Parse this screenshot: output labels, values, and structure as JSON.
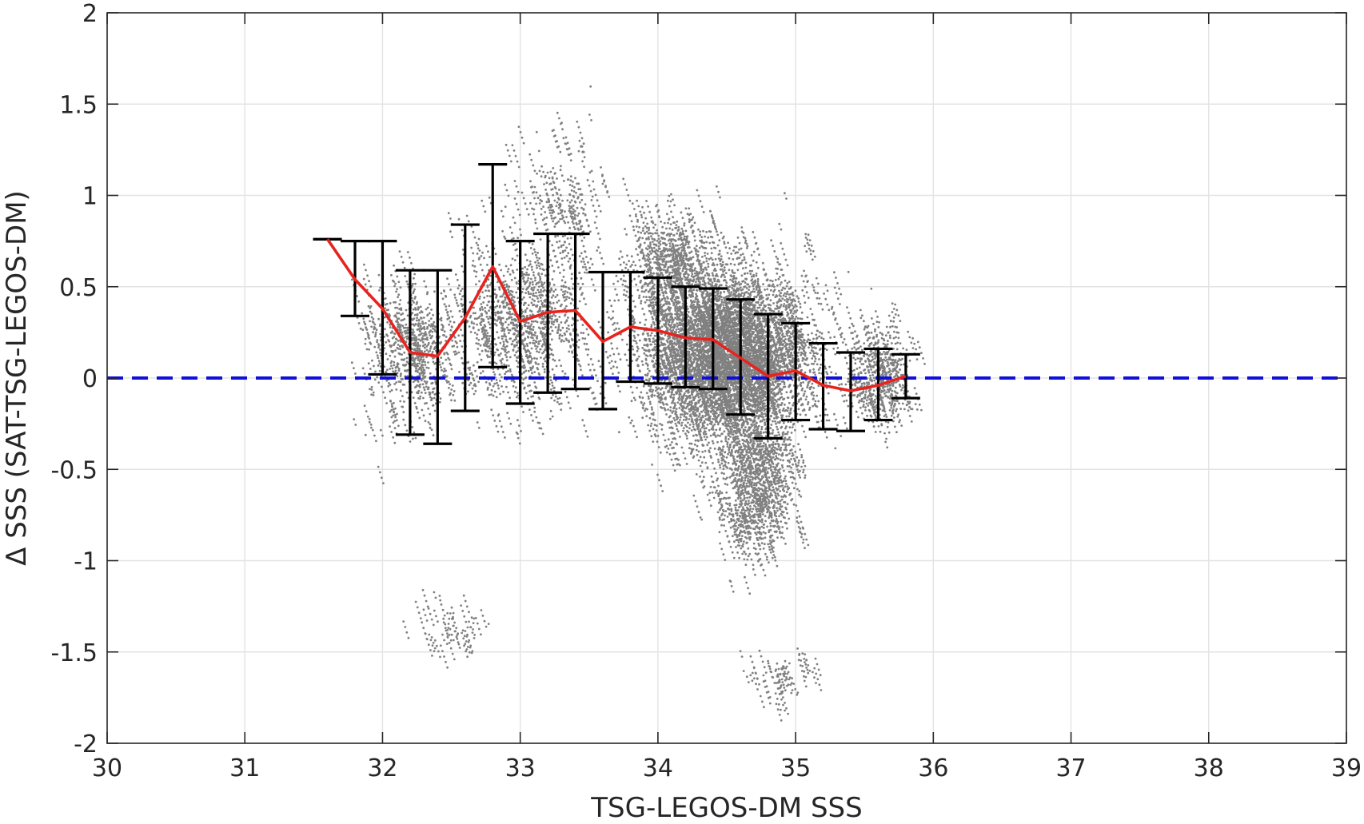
{
  "chart_data": {
    "type": "scatter",
    "xlabel": "TSG-LEGOS-DM SSS",
    "ylabel": "Δ SSS (SAT-TSG-LEGOS-DM)",
    "xlim": [
      30,
      39
    ],
    "ylim": [
      -2,
      2
    ],
    "x_ticks": [
      "30",
      "31",
      "32",
      "33",
      "34",
      "35",
      "36",
      "37",
      "38",
      "39"
    ],
    "y_ticks": [
      "2",
      "1.5",
      "1",
      "0.5",
      "0",
      "-0.5",
      "-1",
      "-1.5",
      "-2"
    ],
    "grid": true,
    "colors": {
      "scatter": "#808080",
      "mean_line": "#e8231e",
      "errorbars": "#000000",
      "zero_line": "#1010d8"
    },
    "reference_line": {
      "y": 0,
      "style": "dashed",
      "color": "#1010d8"
    },
    "mean_with_std": {
      "x": [
        31.6,
        31.8,
        32.0,
        32.2,
        32.4,
        32.6,
        32.8,
        33.0,
        33.2,
        33.4,
        33.6,
        33.8,
        34.0,
        34.2,
        34.4,
        34.6,
        34.8,
        35.0,
        35.2,
        35.4,
        35.6,
        35.8
      ],
      "mean": [
        0.76,
        0.54,
        0.38,
        0.14,
        0.12,
        0.33,
        0.61,
        0.31,
        0.36,
        0.37,
        0.2,
        0.28,
        0.26,
        0.22,
        0.21,
        0.11,
        0.01,
        0.04,
        -0.04,
        -0.07,
        -0.04,
        0.01
      ],
      "lower": [
        0.76,
        0.34,
        0.02,
        -0.31,
        -0.36,
        -0.18,
        0.06,
        -0.14,
        -0.08,
        -0.06,
        -0.17,
        -0.02,
        -0.03,
        -0.05,
        -0.06,
        -0.2,
        -0.33,
        -0.23,
        -0.28,
        -0.29,
        -0.23,
        -0.11
      ],
      "upper": [
        0.76,
        0.75,
        0.75,
        0.59,
        0.59,
        0.84,
        1.17,
        0.75,
        0.79,
        0.79,
        0.58,
        0.58,
        0.55,
        0.5,
        0.49,
        0.43,
        0.35,
        0.3,
        0.19,
        0.14,
        0.16,
        0.13
      ]
    },
    "scatter_clusters": [
      {
        "x_center": 34.5,
        "x_spread": 0.55,
        "y_center": 0.15,
        "y_spread": 0.42,
        "n": 2600
      },
      {
        "x_center": 34.7,
        "x_spread": 0.25,
        "y_center": -0.55,
        "y_spread": 0.35,
        "n": 500
      },
      {
        "x_center": 34.1,
        "x_spread": 0.3,
        "y_center": 0.65,
        "y_spread": 0.25,
        "n": 350
      },
      {
        "x_center": 33.0,
        "x_spread": 0.5,
        "y_center": 0.35,
        "y_spread": 0.4,
        "n": 500
      },
      {
        "x_center": 32.2,
        "x_spread": 0.3,
        "y_center": 0.2,
        "y_spread": 0.35,
        "n": 300
      },
      {
        "x_center": 33.3,
        "x_spread": 0.3,
        "y_center": 1.0,
        "y_spread": 0.35,
        "n": 120
      },
      {
        "x_center": 32.5,
        "x_spread": 0.25,
        "y_center": -1.35,
        "y_spread": 0.15,
        "n": 50
      },
      {
        "x_center": 34.9,
        "x_spread": 0.25,
        "y_center": -1.6,
        "y_spread": 0.12,
        "n": 50
      },
      {
        "x_center": 35.6,
        "x_spread": 0.2,
        "y_center": 0.05,
        "y_spread": 0.25,
        "n": 250
      }
    ]
  }
}
